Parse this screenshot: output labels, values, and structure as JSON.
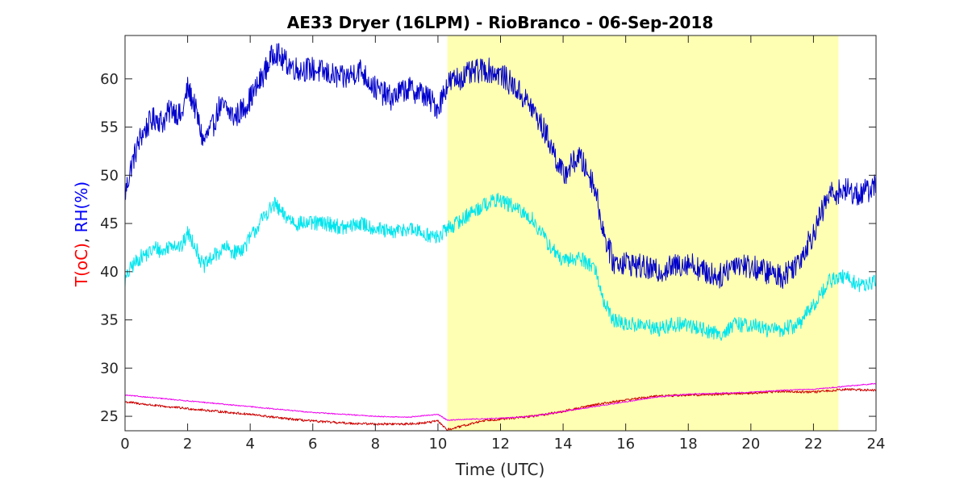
{
  "chart_data": {
    "type": "line",
    "title": "AE33 Dryer (16LPM)  - RioBranco - 06-Sep-2018",
    "xlabel": "Time (UTC)",
    "ylabel_parts": [
      {
        "text": "T(oC)",
        "color": "#ff0000"
      },
      {
        "text": ", ",
        "color": "#262626"
      },
      {
        "text": "RH(%)",
        "color": "#0000ff"
      }
    ],
    "xlim": [
      0,
      24
    ],
    "ylim": [
      23.5,
      64.5
    ],
    "xticks": [
      0,
      2,
      4,
      6,
      8,
      10,
      12,
      14,
      16,
      18,
      20,
      22,
      24
    ],
    "yticks": [
      25,
      30,
      35,
      40,
      45,
      50,
      55,
      60
    ],
    "grid": false,
    "highlight": {
      "x_start": 10.3,
      "x_end": 22.8,
      "color": "#ffffb3"
    },
    "series": [
      {
        "color": "#0000cc",
        "x": [
          0,
          0.2,
          0.5,
          0.8,
          1.0,
          1.2,
          1.5,
          1.8,
          2.0,
          2.2,
          2.5,
          2.8,
          3.0,
          3.2,
          3.5,
          3.8,
          4.0,
          4.2,
          4.5,
          4.8,
          5.0,
          5.5,
          6.0,
          6.5,
          7.0,
          7.5,
          8.0,
          8.5,
          9.0,
          9.5,
          10.0,
          10.3,
          10.6,
          11.0,
          11.5,
          12.0,
          12.5,
          13.0,
          13.5,
          14.0,
          14.5,
          15.0,
          15.3,
          15.6,
          16.0,
          16.5,
          17.0,
          17.5,
          18.0,
          18.5,
          19.0,
          19.5,
          20.0,
          20.5,
          21.0,
          21.5,
          22.0,
          22.5,
          23.0,
          23.5,
          24.0
        ],
        "y": [
          48,
          51,
          54,
          55.5,
          56,
          55.5,
          57,
          56,
          59,
          57.5,
          53.5,
          55,
          57,
          57,
          56,
          57,
          58,
          59,
          61,
          63,
          62,
          61,
          61,
          60.5,
          60,
          61,
          59,
          58,
          59,
          58.5,
          57,
          59.5,
          60,
          60.5,
          61,
          60.5,
          59,
          57,
          54,
          50,
          52,
          49,
          44,
          41,
          41,
          40.5,
          40,
          40.5,
          41,
          40,
          39.5,
          41,
          40.5,
          40,
          39.5,
          41,
          44,
          48,
          48.5,
          48,
          49
        ]
      },
      {
        "color": "#00e5ee",
        "x": [
          0,
          0.2,
          0.5,
          0.8,
          1.0,
          1.2,
          1.5,
          1.8,
          2.0,
          2.2,
          2.5,
          2.8,
          3.0,
          3.2,
          3.5,
          3.8,
          4.0,
          4.2,
          4.5,
          4.8,
          5.0,
          5.5,
          6.0,
          6.5,
          7.0,
          7.5,
          8.0,
          8.5,
          9.0,
          9.5,
          10.0,
          10.3,
          10.6,
          11.0,
          11.5,
          12.0,
          12.5,
          13.0,
          13.5,
          14.0,
          14.5,
          15.0,
          15.3,
          15.6,
          16.0,
          16.5,
          17.0,
          17.5,
          18.0,
          18.5,
          19.0,
          19.5,
          20.0,
          20.5,
          21.0,
          21.5,
          22.0,
          22.5,
          23.0,
          23.5,
          24.0
        ],
        "y": [
          39,
          40.5,
          41.5,
          42,
          42.5,
          42,
          43,
          42.5,
          44,
          43,
          40.5,
          41.5,
          42,
          42.5,
          42,
          42.5,
          43.5,
          44.5,
          46,
          47,
          46,
          45,
          45,
          45,
          44.5,
          45,
          44.5,
          44,
          44.5,
          44,
          43.5,
          44.5,
          45,
          46,
          47,
          47.5,
          46.5,
          45.5,
          43,
          41,
          41.5,
          40.5,
          37,
          35,
          34.5,
          34.5,
          34,
          34.5,
          34.5,
          34,
          33.5,
          34.5,
          34.5,
          34,
          34,
          34.5,
          36.5,
          39,
          39.5,
          38.5,
          39
        ]
      },
      {
        "color": "#cc0000",
        "x": [
          0,
          1,
          2,
          3,
          4,
          5,
          6,
          7,
          8,
          9,
          9.5,
          10.0,
          10.3,
          10.8,
          11.5,
          12,
          13,
          14,
          15,
          16,
          17,
          18,
          19,
          20,
          21,
          22,
          23,
          24
        ],
        "y": [
          26.5,
          26.1,
          25.8,
          25.5,
          25.2,
          24.8,
          24.5,
          24.3,
          24.2,
          24.2,
          24.3,
          24.5,
          23.6,
          24.0,
          24.6,
          24.7,
          25.0,
          25.5,
          26.2,
          26.7,
          27.1,
          27.2,
          27.3,
          27.4,
          27.6,
          27.5,
          27.8,
          27.7
        ]
      },
      {
        "color": "#ee00ee",
        "x": [
          0,
          1,
          2,
          3,
          4,
          5,
          6,
          7,
          8,
          9,
          10,
          10.3,
          11,
          12,
          13,
          14,
          15,
          16,
          17,
          18,
          19,
          20,
          21,
          22,
          23,
          24
        ],
        "y": [
          27.2,
          26.9,
          26.6,
          26.3,
          26.0,
          25.7,
          25.4,
          25.2,
          25.0,
          24.9,
          25.2,
          24.6,
          24.7,
          24.8,
          25.0,
          25.5,
          26.0,
          26.5,
          27.0,
          27.3,
          27.4,
          27.5,
          27.7,
          27.8,
          28.1,
          28.4
        ]
      }
    ]
  }
}
